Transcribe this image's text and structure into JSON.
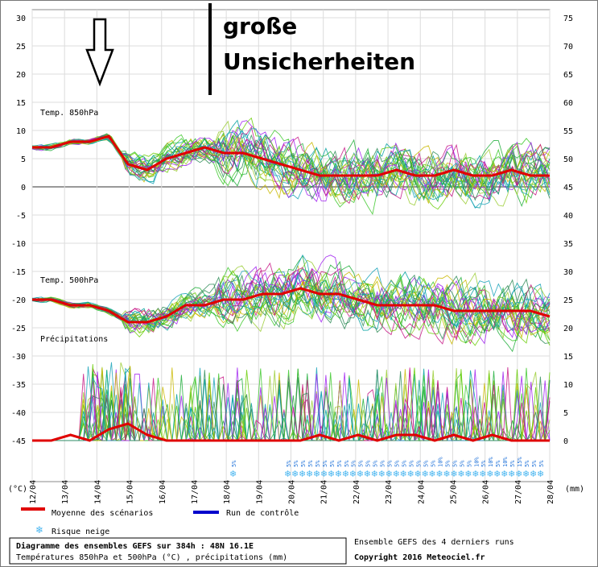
{
  "chart_data": {
    "type": "line",
    "x_dates": [
      "12/04",
      "13/04",
      "14/04",
      "15/04",
      "16/04",
      "17/04",
      "18/04",
      "19/04",
      "20/04",
      "21/04",
      "22/04",
      "23/04",
      "24/04",
      "25/04",
      "26/04",
      "27/04",
      "28/04"
    ],
    "left_axis": {
      "label": "(°C)",
      "ticks": [
        30,
        25,
        20,
        15,
        10,
        5,
        0,
        -5,
        -10,
        -15,
        -20,
        -25,
        -30,
        -35,
        -40,
        -45
      ]
    },
    "right_axis": {
      "label": "(mm)",
      "ticks": [
        75,
        70,
        65,
        60,
        55,
        50,
        45,
        40,
        35,
        30,
        25,
        20,
        15,
        10,
        5,
        0
      ]
    },
    "panels": {
      "t850": "Temp. 850hPa",
      "t500": "Temp. 500hPa",
      "precip": "Précipitations"
    },
    "series": [
      {
        "name": "Moyenne des scénarios",
        "color": "#e00000",
        "t850": [
          7,
          7,
          8,
          8,
          9,
          4,
          3,
          5,
          6,
          7,
          6,
          6,
          5,
          4,
          3,
          2,
          2,
          2,
          2,
          3,
          2,
          2,
          3,
          2,
          2,
          3,
          2,
          2
        ],
        "t500": [
          -20,
          -20,
          -21,
          -21,
          -22,
          -24,
          -24,
          -23,
          -21,
          -21,
          -20,
          -20,
          -19,
          -19,
          -18,
          -19,
          -19,
          -20,
          -21,
          -21,
          -21,
          -21,
          -22,
          -22,
          -22,
          -22,
          -22,
          -23
        ],
        "precip": [
          0,
          0,
          1,
          0,
          2,
          3,
          1,
          0,
          0,
          0,
          0,
          0,
          0,
          0,
          0,
          1,
          0,
          1,
          0,
          1,
          1,
          0,
          1,
          0,
          1,
          0,
          0,
          0
        ]
      },
      {
        "name": "Run de contrôle",
        "color": "#0000cc"
      }
    ],
    "snow_labels": [
      "5%",
      "5%",
      "5%",
      "5%",
      "5%",
      "5%",
      "5%",
      "5%",
      "5%",
      "5%",
      "5%",
      "5%",
      "5%",
      "5%",
      "5%",
      "5%",
      "5%",
      "5%",
      "5%",
      "5%",
      "5%",
      "5%",
      "10%",
      "5%",
      "5%",
      "5%",
      "5%",
      "10%",
      "5%",
      "10%",
      "5%",
      "10%",
      "5%",
      "15%",
      "5%",
      "5%",
      "5%"
    ]
  },
  "legend": {
    "mean": "Moyenne des scénarios",
    "control": "Run de contrôle",
    "snow": "Risque neige"
  },
  "annotation": {
    "line1": "große",
    "line2": "Unsicherheiten"
  },
  "footer": {
    "title": "Diagramme des ensembles GEFS sur 384h : 48N 16.1E",
    "subtitle": "Températures 850hPa et 500hPa (°C) , précipitations (mm)",
    "ensemble": "Ensemble GEFS des 4 derniers runs",
    "copyright": "Copyright 2016 Meteociel.fr"
  },
  "colors": {
    "mean": "#e00000",
    "control": "#0000cc",
    "snow": "#49b6f0",
    "grid": "#c8c8c8"
  }
}
